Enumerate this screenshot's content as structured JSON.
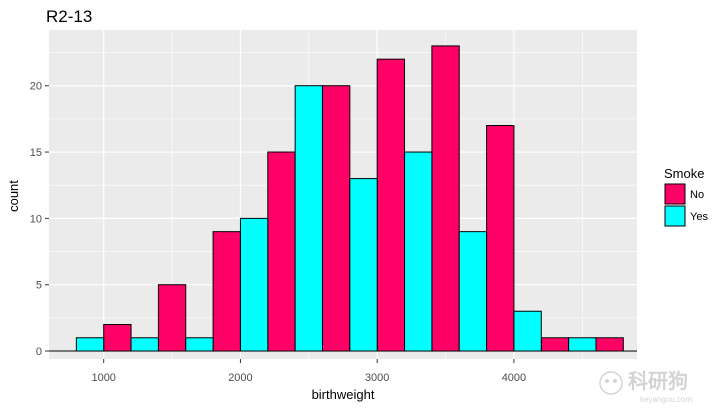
{
  "chart_data": {
    "type": "bar",
    "title": "R2-13",
    "xlabel": "birthweight",
    "ylabel": "count",
    "xlim": [
      600,
      4900
    ],
    "ylim": [
      -0.6,
      24.2
    ],
    "x_ticks": [
      1000,
      2000,
      3000,
      4000
    ],
    "y_ticks": [
      0,
      5,
      10,
      15,
      20
    ],
    "bin_width": 200,
    "grid": true,
    "legend": {
      "title": "Smoke",
      "position": "right"
    },
    "series": [
      {
        "name": "No",
        "color": "#ff0066",
        "bins": [
          {
            "x0": 1000,
            "x1": 1200,
            "count": 2
          },
          {
            "x0": 1400,
            "x1": 1600,
            "count": 5
          },
          {
            "x0": 1800,
            "x1": 2000,
            "count": 9
          },
          {
            "x0": 2200,
            "x1": 2400,
            "count": 15
          },
          {
            "x0": 2600,
            "x1": 2800,
            "count": 20
          },
          {
            "x0": 3000,
            "x1": 3200,
            "count": 22
          },
          {
            "x0": 3400,
            "x1": 3600,
            "count": 23
          },
          {
            "x0": 3800,
            "x1": 4000,
            "count": 17
          },
          {
            "x0": 4200,
            "x1": 4400,
            "count": 1
          },
          {
            "x0": 4600,
            "x1": 4800,
            "count": 1
          }
        ]
      },
      {
        "name": "Yes",
        "color": "#00ffff",
        "bins": [
          {
            "x0": 800,
            "x1": 1000,
            "count": 1
          },
          {
            "x0": 1200,
            "x1": 1400,
            "count": 1
          },
          {
            "x0": 1600,
            "x1": 1800,
            "count": 1
          },
          {
            "x0": 2000,
            "x1": 2200,
            "count": 10
          },
          {
            "x0": 2400,
            "x1": 2600,
            "count": 20
          },
          {
            "x0": 2800,
            "x1": 3000,
            "count": 13
          },
          {
            "x0": 3200,
            "x1": 3400,
            "count": 15
          },
          {
            "x0": 3600,
            "x1": 3800,
            "count": 9
          },
          {
            "x0": 4000,
            "x1": 4200,
            "count": 3
          },
          {
            "x0": 4400,
            "x1": 4600,
            "count": 1
          }
        ]
      }
    ],
    "zero_bins": [
      {
        "x0": 600,
        "x1": 800,
        "count": 0
      },
      {
        "x0": 4800,
        "x1": 5000,
        "count": 0
      }
    ]
  },
  "colors": {
    "panel_background": "#ebebeb",
    "gridline_major": "#ffffff",
    "bar_outline": "#000000"
  },
  "watermark": {
    "text": "科研狗",
    "subtext": "keyangou.com"
  }
}
